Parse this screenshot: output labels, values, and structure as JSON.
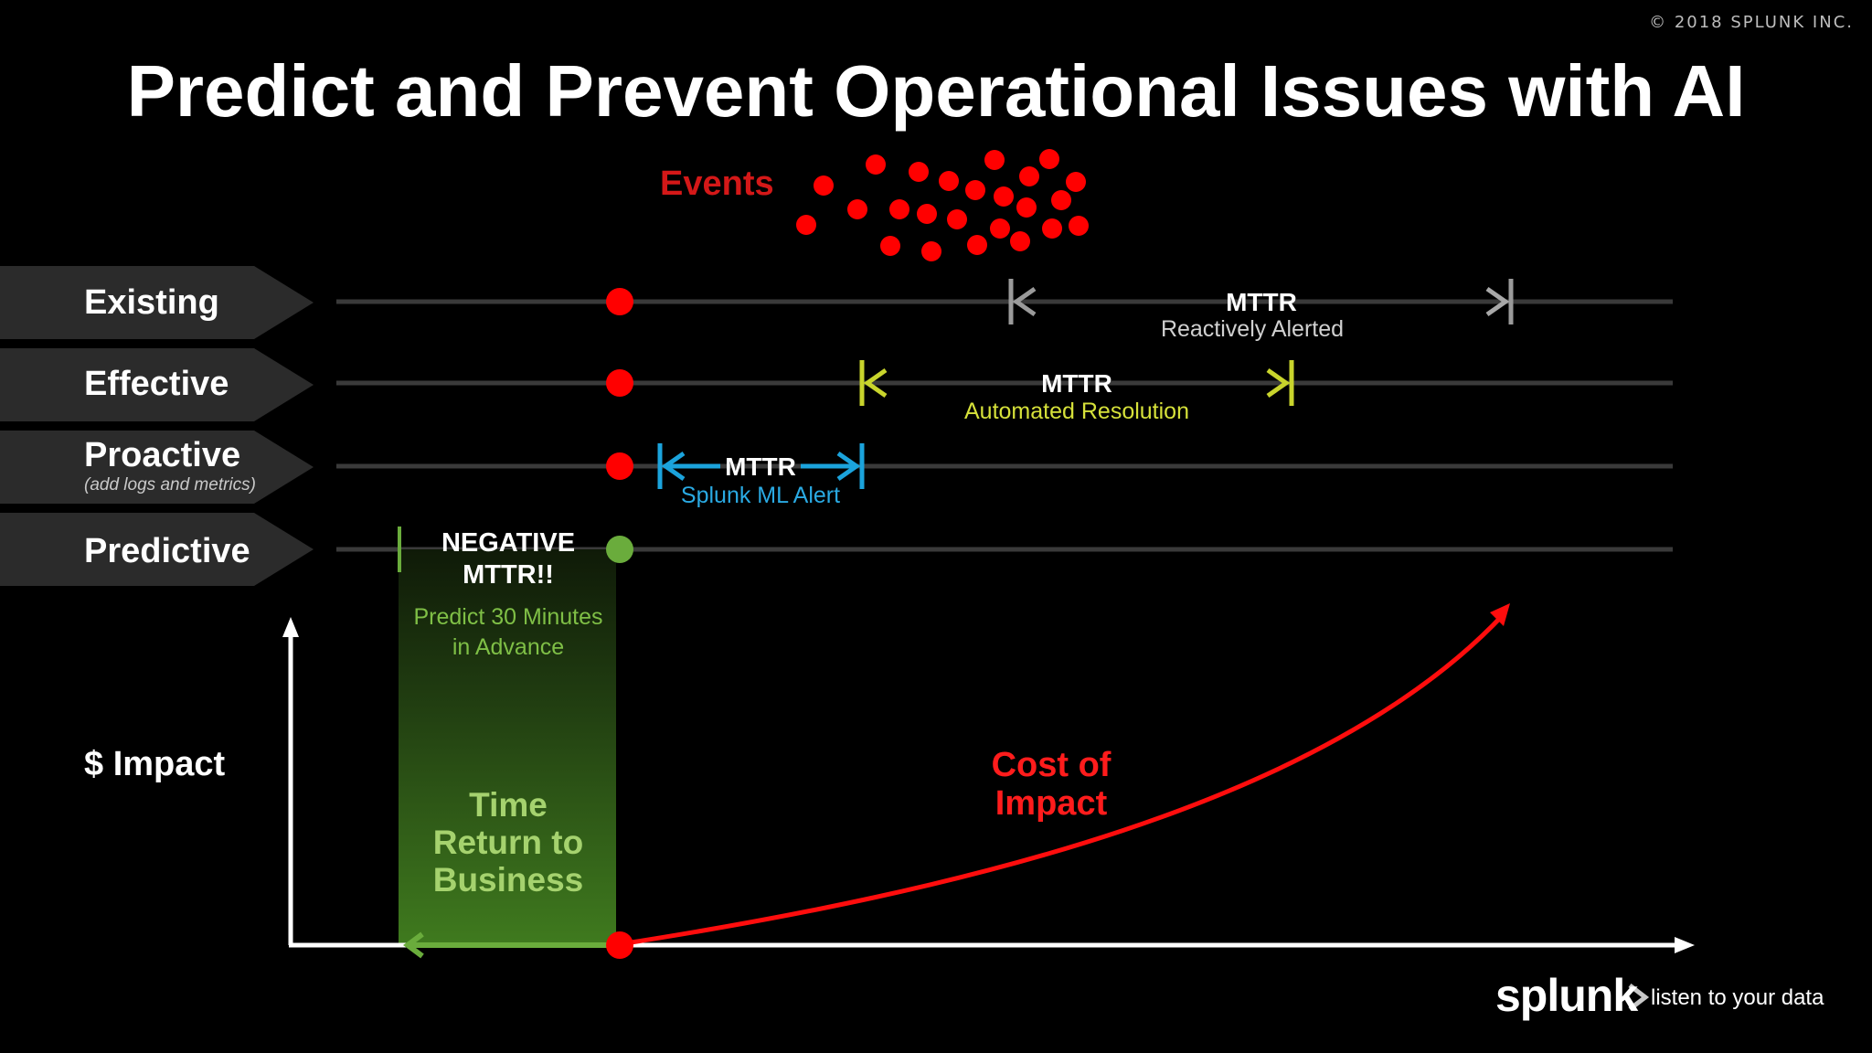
{
  "copyright": "© 2018 SPLUNK INC.",
  "title": "Predict and Prevent Operational Issues with AI",
  "events_label": "Events",
  "rows": [
    {
      "label": "Existing",
      "sub": ""
    },
    {
      "label": "Effective",
      "sub": ""
    },
    {
      "label": "Proactive",
      "sub": "(add logs and metrics)"
    },
    {
      "label": "Predictive",
      "sub": ""
    }
  ],
  "mttr": [
    {
      "head": "MTTR",
      "sub": "Reactively Alerted",
      "color": "#9a9a9a",
      "sub_color": "#d0d0d0"
    },
    {
      "head": "MTTR",
      "sub": "Automated Resolution",
      "color": "#c8d42c",
      "sub_color": "#d6e13a"
    },
    {
      "head": "MTTR",
      "sub": "Splunk ML Alert",
      "color": "#1ba3dc",
      "sub_color": "#2aaae3"
    }
  ],
  "negative_mttr": {
    "line1": "NEGATIVE",
    "line2": "MTTR!!"
  },
  "predict": {
    "line1": "Predict 30 Minutes",
    "line2": "in Advance"
  },
  "time_return": {
    "line1": "Time",
    "line2": "Return to",
    "line3": "Business"
  },
  "impact_axis_label": "$ Impact",
  "cost_of_impact": {
    "line1": "Cost of",
    "line2": "Impact"
  },
  "brand": {
    "name": "splunk",
    "tagline": "listen to your data"
  },
  "colors": {
    "event_red": "#ff0000",
    "predictive_green": "#6aac3c",
    "curve_red": "#ff0d0d",
    "row_banner": "#2b2b2b",
    "row_line": "#3a3a3a"
  }
}
